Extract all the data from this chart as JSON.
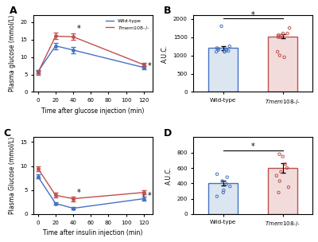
{
  "panel_A": {
    "timepoints_plot": [
      0,
      20,
      40,
      120
    ],
    "wt_mean": [
      5.8,
      13.2,
      12.0,
      7.0
    ],
    "wt_err": [
      0.4,
      0.9,
      0.9,
      0.5
    ],
    "ko_mean": [
      5.5,
      16.0,
      15.8,
      7.8
    ],
    "ko_err": [
      0.5,
      0.9,
      0.9,
      0.5
    ],
    "xlabel": "Time after glucose injection (min)",
    "ylabel": "Plasma glucose (mmol/L)",
    "ylim": [
      0,
      22
    ],
    "yticks": [
      0,
      5,
      10,
      15,
      20
    ],
    "xticks": [
      0,
      20,
      40,
      60,
      80,
      100,
      120
    ],
    "label": "A"
  },
  "panel_B": {
    "bar_means": [
      1200,
      1520
    ],
    "bar_errs": [
      55,
      55
    ],
    "wt_dots": [
      1800,
      1250,
      1150,
      1100,
      1180,
      1150,
      1200,
      1120,
      1100,
      1150,
      1100
    ],
    "ko_dots": [
      1750,
      1600,
      1550,
      1500,
      1550,
      1500,
      1600,
      1550,
      1000,
      950,
      1100
    ],
    "ylabel": "A.U.C.",
    "ylim": [
      0,
      2100
    ],
    "yticks": [
      0,
      500,
      1000,
      1500,
      2000
    ],
    "label": "B",
    "sig_y": 2020
  },
  "panel_C": {
    "timepoints_plot": [
      0,
      20,
      40,
      120
    ],
    "wt_mean": [
      7.8,
      2.2,
      1.2,
      3.2
    ],
    "wt_err": [
      0.4,
      0.3,
      0.2,
      0.4
    ],
    "ko_mean": [
      9.5,
      3.9,
      3.2,
      4.5
    ],
    "ko_err": [
      0.5,
      0.5,
      0.5,
      0.4
    ],
    "xlabel": "Time after insulin injection (min)",
    "ylabel": "Plasma Glucose (mmol/L)",
    "ylim": [
      0,
      16
    ],
    "yticks": [
      0,
      5,
      10,
      15
    ],
    "xticks": [
      0,
      20,
      40,
      60,
      80,
      100,
      120
    ],
    "label": "C"
  },
  "panel_D": {
    "bar_means": [
      400,
      600
    ],
    "bar_errs": [
      30,
      65
    ],
    "wt_dots": [
      520,
      480,
      430,
      390,
      360,
      310,
      280,
      230
    ],
    "ko_dots": [
      780,
      750,
      650,
      600,
      550,
      500,
      430,
      350,
      280
    ],
    "ylabel": "A.U.C.",
    "ylim": [
      0,
      1000
    ],
    "yticks": [
      0,
      200,
      400,
      600,
      800
    ],
    "label": "D",
    "sig_y": 830
  },
  "wt_color": "#4472c4",
  "ko_color": "#c0504d",
  "wt_bar_fill": "#dce6f1",
  "ko_bar_fill": "#f2dcdb",
  "wt_label": "Wild-type",
  "ko_label": "Tmem108-/-",
  "bg_color": "#ffffff"
}
